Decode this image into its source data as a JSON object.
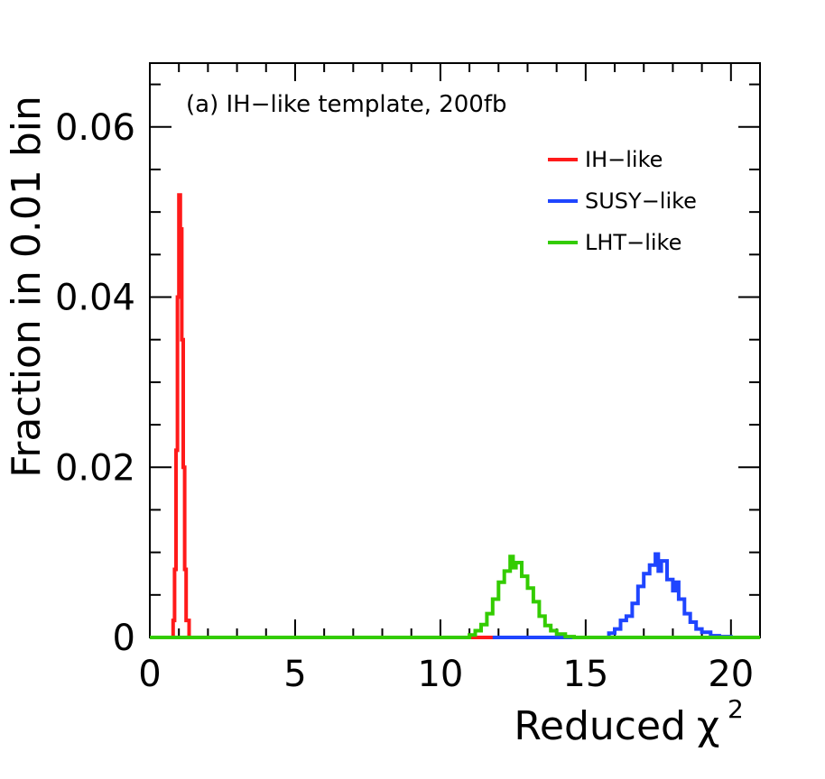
{
  "chart_data": {
    "type": "line",
    "step": true,
    "annotation": "(a) IH−like template, 200fb",
    "xlabel": "Reduced",
    "xlabel_symbol": "χ",
    "xlabel_superscript": "2",
    "ylabel": "Fraction in 0.01 bin",
    "xlim": [
      0,
      21
    ],
    "ylim": [
      0,
      0.0675
    ],
    "x_ticks": [
      0,
      5,
      10,
      15,
      20
    ],
    "x_tick_labels": [
      "0",
      "5",
      "10",
      "15",
      "20"
    ],
    "y_ticks": [
      0,
      0.02,
      0.04,
      0.06
    ],
    "y_tick_labels": [
      "0",
      "0.02",
      "0.04",
      "0.06"
    ],
    "legend_position": "top-right",
    "series": [
      {
        "name": "IH−like",
        "color": "#ff1a1a",
        "points": [
          [
            0,
            0
          ],
          [
            0.75,
            0
          ],
          [
            0.8,
            0.002
          ],
          [
            0.85,
            0.008
          ],
          [
            0.9,
            0.022
          ],
          [
            0.95,
            0.04
          ],
          [
            1.0,
            0.052
          ],
          [
            1.05,
            0.048
          ],
          [
            1.1,
            0.035
          ],
          [
            1.15,
            0.02
          ],
          [
            1.2,
            0.008
          ],
          [
            1.25,
            0.002
          ],
          [
            1.35,
            0
          ],
          [
            21,
            0
          ]
        ]
      },
      {
        "name": "SUSY−like",
        "color": "#1f45ff",
        "points": [
          [
            11.8,
            0
          ],
          [
            15.6,
            0
          ],
          [
            15.8,
            0.0005
          ],
          [
            16.0,
            0.001
          ],
          [
            16.2,
            0.002
          ],
          [
            16.4,
            0.0025
          ],
          [
            16.6,
            0.004
          ],
          [
            16.8,
            0.006
          ],
          [
            17.0,
            0.0075
          ],
          [
            17.2,
            0.0085
          ],
          [
            17.4,
            0.0098
          ],
          [
            17.5,
            0.0078
          ],
          [
            17.6,
            0.009
          ],
          [
            17.8,
            0.0068
          ],
          [
            18.0,
            0.0055
          ],
          [
            18.1,
            0.0065
          ],
          [
            18.2,
            0.0045
          ],
          [
            18.4,
            0.0028
          ],
          [
            18.6,
            0.0018
          ],
          [
            18.8,
            0.001
          ],
          [
            19.0,
            0.0006
          ],
          [
            19.3,
            0.0002
          ],
          [
            19.6,
            0.0001
          ],
          [
            20.0,
            0
          ]
        ]
      },
      {
        "name": "LHT−like",
        "color": "#33cc00",
        "points": [
          [
            0,
            0
          ],
          [
            10.8,
            0
          ],
          [
            11.0,
            0.0003
          ],
          [
            11.2,
            0.0008
          ],
          [
            11.4,
            0.0015
          ],
          [
            11.6,
            0.0028
          ],
          [
            11.8,
            0.0045
          ],
          [
            12.0,
            0.0065
          ],
          [
            12.2,
            0.0078
          ],
          [
            12.4,
            0.0095
          ],
          [
            12.5,
            0.0082
          ],
          [
            12.6,
            0.0088
          ],
          [
            12.8,
            0.0072
          ],
          [
            13.0,
            0.0058
          ],
          [
            13.2,
            0.0042
          ],
          [
            13.4,
            0.0025
          ],
          [
            13.6,
            0.0014
          ],
          [
            13.8,
            0.0008
          ],
          [
            14.0,
            0.0004
          ],
          [
            14.3,
            0.0001
          ],
          [
            14.6,
            0
          ],
          [
            21,
            0
          ]
        ]
      }
    ]
  }
}
